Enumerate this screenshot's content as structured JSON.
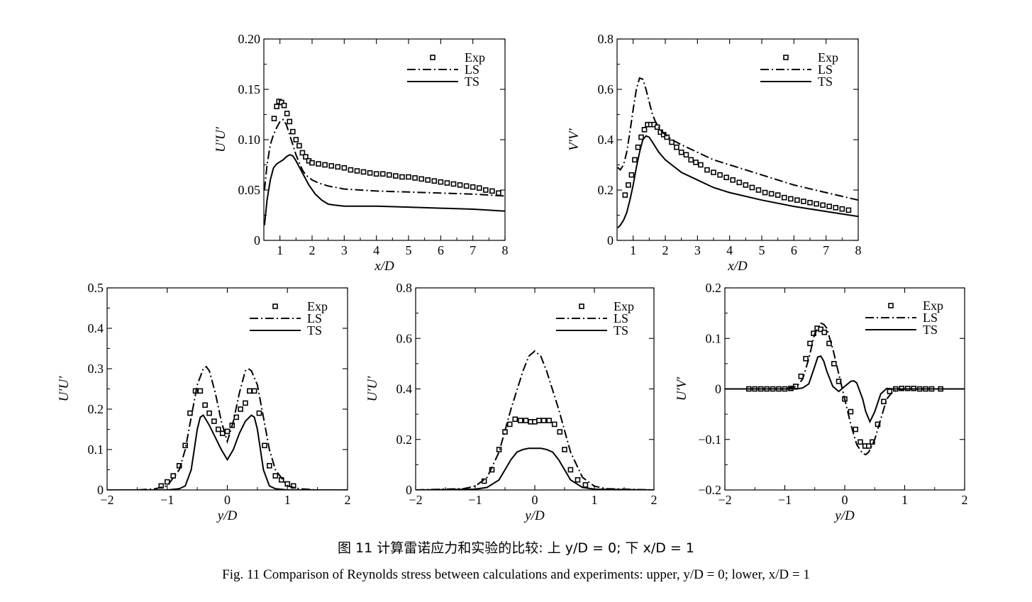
{
  "caption_cn": "图 11  计算雷诺应力和实验的比较: 上 y/D = 0; 下 x/D = 1",
  "caption_en": "Fig. 11  Comparison of Reynolds stress between calculations and experiments: upper, y/D = 0; lower, x/D = 1",
  "legend": [
    "Exp",
    "LS",
    "TS"
  ],
  "chart_data": [
    {
      "type": "line",
      "xlabel": "x/D",
      "ylabel": "U′U′",
      "xlim": [
        0.5,
        8
      ],
      "ylim": [
        0,
        0.2
      ],
      "xticks": [
        "1",
        "2",
        "3",
        "4",
        "5",
        "6",
        "7",
        "8"
      ],
      "yticks": [
        "0",
        "0.05",
        "0.10",
        "0.15",
        "0.20"
      ],
      "series": [
        {
          "name": "Exp",
          "style": "markers",
          "x": [
            0.82,
            0.9,
            0.97,
            1.05,
            1.13,
            1.22,
            1.3,
            1.4,
            1.5,
            1.6,
            1.7,
            1.8,
            1.9,
            2.0,
            2.2,
            2.4,
            2.6,
            2.8,
            3.0,
            3.2,
            3.4,
            3.6,
            3.8,
            4.0,
            4.2,
            4.4,
            4.6,
            4.8,
            5.0,
            5.2,
            5.4,
            5.6,
            5.8,
            6.0,
            6.2,
            6.4,
            6.6,
            6.8,
            7.0,
            7.2,
            7.4,
            7.6,
            7.8
          ],
          "y": [
            0.121,
            0.133,
            0.138,
            0.137,
            0.134,
            0.126,
            0.118,
            0.108,
            0.1,
            0.094,
            0.087,
            0.083,
            0.079,
            0.077,
            0.076,
            0.075,
            0.074,
            0.073,
            0.072,
            0.07,
            0.069,
            0.068,
            0.067,
            0.066,
            0.066,
            0.065,
            0.064,
            0.063,
            0.063,
            0.062,
            0.061,
            0.06,
            0.059,
            0.058,
            0.057,
            0.056,
            0.055,
            0.054,
            0.053,
            0.052,
            0.05,
            0.049,
            0.047
          ]
        },
        {
          "name": "LS",
          "style": "dashdot",
          "x": [
            0.52,
            0.6,
            0.7,
            0.8,
            0.9,
            1.0,
            1.1,
            1.2,
            1.3,
            1.4,
            1.5,
            1.6,
            1.7,
            1.8,
            2.0,
            2.2,
            2.5,
            3.0,
            3.5,
            4.0,
            5.0,
            6.0,
            7.0,
            8.0
          ],
          "y": [
            0.05,
            0.075,
            0.095,
            0.105,
            0.112,
            0.118,
            0.12,
            0.115,
            0.105,
            0.095,
            0.085,
            0.077,
            0.07,
            0.065,
            0.06,
            0.057,
            0.054,
            0.051,
            0.05,
            0.049,
            0.048,
            0.047,
            0.046,
            0.044
          ]
        },
        {
          "name": "TS",
          "style": "solid",
          "x": [
            0.52,
            0.6,
            0.7,
            0.8,
            0.9,
            1.0,
            1.1,
            1.2,
            1.3,
            1.4,
            1.5,
            1.7,
            1.9,
            2.1,
            2.3,
            2.5,
            2.7,
            3.0,
            3.5,
            4.0,
            5.0,
            6.0,
            7.0,
            8.0
          ],
          "y": [
            0.015,
            0.04,
            0.06,
            0.072,
            0.076,
            0.078,
            0.08,
            0.083,
            0.085,
            0.084,
            0.079,
            0.067,
            0.055,
            0.046,
            0.04,
            0.036,
            0.035,
            0.034,
            0.034,
            0.034,
            0.033,
            0.032,
            0.031,
            0.029
          ]
        }
      ]
    },
    {
      "type": "line",
      "xlabel": "x/D",
      "ylabel": "V′V′",
      "xlim": [
        0.5,
        8
      ],
      "ylim": [
        0,
        0.8
      ],
      "xticks": [
        "1",
        "2",
        "3",
        "4",
        "5",
        "6",
        "7",
        "8"
      ],
      "yticks": [
        "0",
        "0.2",
        "0.4",
        "0.6",
        "0.8"
      ],
      "series": [
        {
          "name": "Exp",
          "style": "markers",
          "x": [
            0.75,
            0.85,
            0.95,
            1.05,
            1.15,
            1.25,
            1.35,
            1.45,
            1.55,
            1.65,
            1.75,
            1.85,
            1.95,
            2.05,
            2.2,
            2.35,
            2.5,
            2.65,
            2.8,
            2.95,
            3.1,
            3.3,
            3.5,
            3.7,
            3.9,
            4.1,
            4.3,
            4.5,
            4.7,
            4.9,
            5.1,
            5.3,
            5.5,
            5.7,
            5.9,
            6.1,
            6.3,
            6.5,
            6.7,
            6.9,
            7.1,
            7.3,
            7.5,
            7.7
          ],
          "y": [
            0.18,
            0.22,
            0.26,
            0.32,
            0.37,
            0.41,
            0.44,
            0.46,
            0.46,
            0.46,
            0.45,
            0.43,
            0.42,
            0.41,
            0.39,
            0.37,
            0.35,
            0.34,
            0.32,
            0.31,
            0.3,
            0.28,
            0.27,
            0.26,
            0.25,
            0.24,
            0.23,
            0.22,
            0.21,
            0.2,
            0.19,
            0.185,
            0.18,
            0.17,
            0.165,
            0.16,
            0.155,
            0.15,
            0.145,
            0.14,
            0.135,
            0.13,
            0.125,
            0.12
          ]
        },
        {
          "name": "LS",
          "style": "dashdot",
          "x": [
            0.52,
            0.6,
            0.7,
            0.8,
            0.9,
            1.0,
            1.1,
            1.2,
            1.3,
            1.4,
            1.5,
            1.6,
            1.7,
            1.8,
            1.9,
            2.0,
            2.2,
            2.5,
            3.0,
            3.5,
            4.0,
            5.0,
            6.0,
            7.0,
            8.0
          ],
          "y": [
            0.29,
            0.28,
            0.3,
            0.35,
            0.43,
            0.52,
            0.6,
            0.645,
            0.64,
            0.6,
            0.55,
            0.5,
            0.47,
            0.45,
            0.43,
            0.42,
            0.4,
            0.38,
            0.35,
            0.32,
            0.3,
            0.26,
            0.22,
            0.19,
            0.16
          ]
        },
        {
          "name": "TS",
          "style": "solid",
          "x": [
            0.52,
            0.6,
            0.7,
            0.8,
            0.9,
            1.0,
            1.1,
            1.2,
            1.3,
            1.4,
            1.5,
            1.6,
            1.7,
            1.8,
            2.0,
            2.2,
            2.5,
            3.0,
            3.5,
            4.0,
            5.0,
            6.0,
            7.0,
            8.0
          ],
          "y": [
            0.05,
            0.06,
            0.08,
            0.11,
            0.16,
            0.22,
            0.29,
            0.35,
            0.4,
            0.415,
            0.41,
            0.39,
            0.37,
            0.35,
            0.32,
            0.3,
            0.27,
            0.24,
            0.21,
            0.19,
            0.16,
            0.135,
            0.115,
            0.095
          ]
        }
      ]
    },
    {
      "type": "line",
      "xlabel": "y/D",
      "ylabel": "U′U′",
      "xlim": [
        -2,
        2
      ],
      "ylim": [
        0,
        0.5
      ],
      "xticks": [
        "−2",
        "−1",
        "0",
        "1",
        "2"
      ],
      "yticks": [
        "0",
        "0.1",
        "0.2",
        "0.3",
        "0.4",
        "0.5"
      ],
      "series": [
        {
          "name": "Exp",
          "style": "markers",
          "x": [
            -1.1,
            -1.0,
            -0.9,
            -0.8,
            -0.7,
            -0.62,
            -0.53,
            -0.45,
            -0.37,
            -0.3,
            -0.22,
            -0.15,
            -0.08,
            0.0,
            0.08,
            0.15,
            0.22,
            0.3,
            0.37,
            0.45,
            0.53,
            0.62,
            0.7,
            0.8,
            0.9,
            1.0,
            1.1
          ],
          "y": [
            0.01,
            0.02,
            0.035,
            0.06,
            0.11,
            0.19,
            0.245,
            0.245,
            0.21,
            0.19,
            0.17,
            0.15,
            0.14,
            0.145,
            0.16,
            0.18,
            0.2,
            0.215,
            0.245,
            0.245,
            0.19,
            0.11,
            0.06,
            0.035,
            0.025,
            0.015,
            0.01
          ]
        },
        {
          "name": "LS",
          "style": "dashdot",
          "x": [
            -2.0,
            -1.5,
            -1.2,
            -1.0,
            -0.8,
            -0.7,
            -0.6,
            -0.5,
            -0.4,
            -0.35,
            -0.3,
            -0.2,
            -0.1,
            0.0,
            0.1,
            0.2,
            0.3,
            0.35,
            0.4,
            0.5,
            0.6,
            0.7,
            0.8,
            1.0,
            1.2,
            1.5,
            2.0
          ],
          "y": [
            0,
            0,
            0.003,
            0.01,
            0.05,
            0.1,
            0.18,
            0.26,
            0.3,
            0.305,
            0.295,
            0.24,
            0.17,
            0.12,
            0.17,
            0.24,
            0.295,
            0.3,
            0.295,
            0.26,
            0.18,
            0.1,
            0.05,
            0.01,
            0.003,
            0,
            0
          ]
        },
        {
          "name": "TS",
          "style": "solid",
          "x": [
            -2.0,
            -1.0,
            -0.8,
            -0.7,
            -0.6,
            -0.5,
            -0.45,
            -0.4,
            -0.3,
            -0.2,
            -0.1,
            0.0,
            0.1,
            0.2,
            0.3,
            0.4,
            0.45,
            0.5,
            0.6,
            0.7,
            0.8,
            1.0,
            2.0
          ],
          "y": [
            0,
            0,
            0.003,
            0.01,
            0.05,
            0.15,
            0.18,
            0.185,
            0.16,
            0.13,
            0.1,
            0.075,
            0.1,
            0.14,
            0.17,
            0.185,
            0.18,
            0.15,
            0.05,
            0.01,
            0.003,
            0,
            0
          ]
        }
      ]
    },
    {
      "type": "line",
      "xlabel": "y/D",
      "ylabel": "U′U′",
      "xlim": [
        -2,
        2
      ],
      "ylim": [
        0,
        0.8
      ],
      "xticks": [
        "−2",
        "−1",
        "0",
        "1",
        "2"
      ],
      "yticks": [
        "0",
        "0.2",
        "0.4",
        "0.6",
        "0.8"
      ],
      "series": [
        {
          "name": "Exp",
          "style": "markers",
          "x": [
            -0.85,
            -0.72,
            -0.6,
            -0.5,
            -0.42,
            -0.33,
            -0.24,
            -0.15,
            -0.07,
            0.0,
            0.07,
            0.15,
            0.24,
            0.33,
            0.42,
            0.5,
            0.6,
            0.72,
            0.85
          ],
          "y": [
            0.035,
            0.08,
            0.16,
            0.23,
            0.26,
            0.28,
            0.275,
            0.275,
            0.27,
            0.27,
            0.275,
            0.275,
            0.275,
            0.26,
            0.23,
            0.16,
            0.08,
            0.04,
            0.02
          ]
        },
        {
          "name": "LS",
          "style": "dashdot",
          "x": [
            -2.0,
            -1.2,
            -1.0,
            -0.8,
            -0.6,
            -0.4,
            -0.2,
            -0.1,
            0.0,
            0.1,
            0.2,
            0.4,
            0.6,
            0.8,
            1.0,
            1.2,
            2.0
          ],
          "y": [
            0,
            0.005,
            0.015,
            0.05,
            0.15,
            0.32,
            0.47,
            0.53,
            0.55,
            0.53,
            0.47,
            0.32,
            0.15,
            0.05,
            0.015,
            0.005,
            0
          ]
        },
        {
          "name": "TS",
          "style": "solid",
          "x": [
            -2.0,
            -1.0,
            -0.8,
            -0.6,
            -0.5,
            -0.4,
            -0.3,
            -0.2,
            -0.1,
            0.0,
            0.1,
            0.2,
            0.3,
            0.4,
            0.5,
            0.6,
            0.8,
            1.0,
            2.0
          ],
          "y": [
            0,
            0.003,
            0.01,
            0.04,
            0.08,
            0.12,
            0.15,
            0.16,
            0.165,
            0.165,
            0.165,
            0.16,
            0.15,
            0.12,
            0.08,
            0.04,
            0.01,
            0.003,
            0
          ]
        }
      ]
    },
    {
      "type": "line",
      "xlabel": "y/D",
      "ylabel": "U′V′",
      "xlim": [
        -2,
        2
      ],
      "ylim": [
        -0.2,
        0.2
      ],
      "xticks": [
        "−2",
        "−1",
        "0",
        "1",
        "2"
      ],
      "yticks": [
        "−0.2",
        "−0.1",
        "0",
        "0.1",
        "0.2"
      ],
      "series": [
        {
          "name": "Exp",
          "style": "markers",
          "x": [
            -1.6,
            -1.5,
            -1.4,
            -1.3,
            -1.2,
            -1.1,
            -1.0,
            -0.9,
            -0.82,
            -0.73,
            -0.65,
            -0.58,
            -0.52,
            -0.46,
            -0.4,
            -0.34,
            -0.26,
            -0.18,
            -0.1,
            0.0,
            0.1,
            0.18,
            0.26,
            0.34,
            0.4,
            0.46,
            0.55,
            0.65,
            0.75,
            0.85,
            0.95,
            1.05,
            1.15,
            1.25,
            1.35,
            1.45,
            1.6
          ],
          "y": [
            0,
            0,
            0,
            0,
            0,
            0,
            0,
            0.001,
            0.005,
            0.025,
            0.06,
            0.09,
            0.11,
            0.12,
            0.118,
            0.112,
            0.09,
            0.05,
            0.015,
            -0.02,
            -0.045,
            -0.08,
            -0.105,
            -0.113,
            -0.113,
            -0.105,
            -0.07,
            -0.025,
            -0.005,
            0,
            0.001,
            0.001,
            0.001,
            0,
            0,
            0,
            0
          ]
        },
        {
          "name": "LS",
          "style": "dashdot",
          "x": [
            -2.0,
            -1.0,
            -0.8,
            -0.7,
            -0.6,
            -0.5,
            -0.4,
            -0.35,
            -0.3,
            -0.2,
            -0.1,
            0.0,
            0.1,
            0.2,
            0.3,
            0.35,
            0.4,
            0.5,
            0.6,
            0.7,
            0.8,
            1.0,
            2.0
          ],
          "y": [
            0,
            0,
            0.005,
            0.02,
            0.06,
            0.11,
            0.13,
            0.128,
            0.12,
            0.08,
            0.03,
            -0.02,
            -0.07,
            -0.11,
            -0.128,
            -0.13,
            -0.125,
            -0.1,
            -0.06,
            -0.02,
            -0.005,
            0,
            0
          ]
        },
        {
          "name": "TS",
          "style": "solid",
          "x": [
            -2.0,
            -0.8,
            -0.7,
            -0.6,
            -0.5,
            -0.45,
            -0.4,
            -0.35,
            -0.3,
            -0.2,
            -0.1,
            0.0,
            0.1,
            0.15,
            0.2,
            0.3,
            0.35,
            0.42,
            0.5,
            0.6,
            0.7,
            0.8,
            1.0,
            2.0
          ],
          "y": [
            0,
            0,
            0.002,
            0.01,
            0.045,
            0.063,
            0.065,
            0.055,
            0.035,
            0.005,
            -0.005,
            0.005,
            0.015,
            0.016,
            0.012,
            -0.02,
            -0.045,
            -0.065,
            -0.045,
            -0.01,
            0.001,
            0,
            0,
            0
          ]
        }
      ]
    }
  ]
}
